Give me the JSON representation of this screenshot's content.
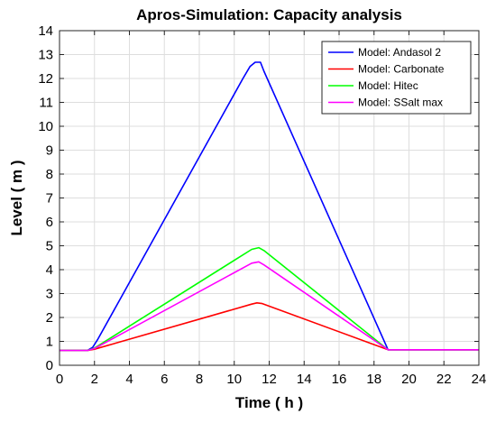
{
  "chart_data": {
    "type": "line",
    "title": "Apros-Simulation: Capacity analysis",
    "xlabel": "Time ( h )",
    "ylabel": "Level  ( m )",
    "xlim": [
      0,
      24
    ],
    "ylim": [
      0,
      14
    ],
    "xticks": [
      0,
      2,
      4,
      6,
      8,
      10,
      12,
      14,
      16,
      18,
      20,
      22,
      24
    ],
    "yticks": [
      0,
      1,
      2,
      3,
      4,
      5,
      6,
      7,
      8,
      9,
      10,
      11,
      12,
      13,
      14
    ],
    "grid": true,
    "legend_position": "top-right",
    "series": [
      {
        "name": "Model: Andasol 2",
        "color": "#0000ff",
        "x": [
          0,
          1.6,
          1.9,
          2.2,
          10.5,
          10.9,
          11.2,
          11.5,
          11.7,
          18.8,
          24
        ],
        "y": [
          0.62,
          0.62,
          0.75,
          1.1,
          12.0,
          12.5,
          12.68,
          12.68,
          12.3,
          0.65,
          0.65
        ]
      },
      {
        "name": "Model: Carbonate",
        "color": "#ff0000",
        "x": [
          0,
          1.6,
          2.0,
          11.0,
          11.3,
          11.6,
          18.8,
          24
        ],
        "y": [
          0.62,
          0.62,
          0.67,
          2.56,
          2.61,
          2.58,
          0.65,
          0.65
        ]
      },
      {
        "name": "Model: Hitec",
        "color": "#00ff00",
        "x": [
          0,
          1.6,
          2.0,
          11.0,
          11.4,
          11.7,
          18.8,
          24
        ],
        "y": [
          0.62,
          0.62,
          0.72,
          4.85,
          4.92,
          4.8,
          0.65,
          0.65
        ]
      },
      {
        "name": "Model: SSalt max",
        "color": "#ff00ff",
        "x": [
          0,
          1.6,
          2.0,
          11.0,
          11.4,
          11.7,
          18.8,
          24
        ],
        "y": [
          0.62,
          0.62,
          0.7,
          4.27,
          4.33,
          4.2,
          0.65,
          0.65
        ]
      }
    ]
  }
}
